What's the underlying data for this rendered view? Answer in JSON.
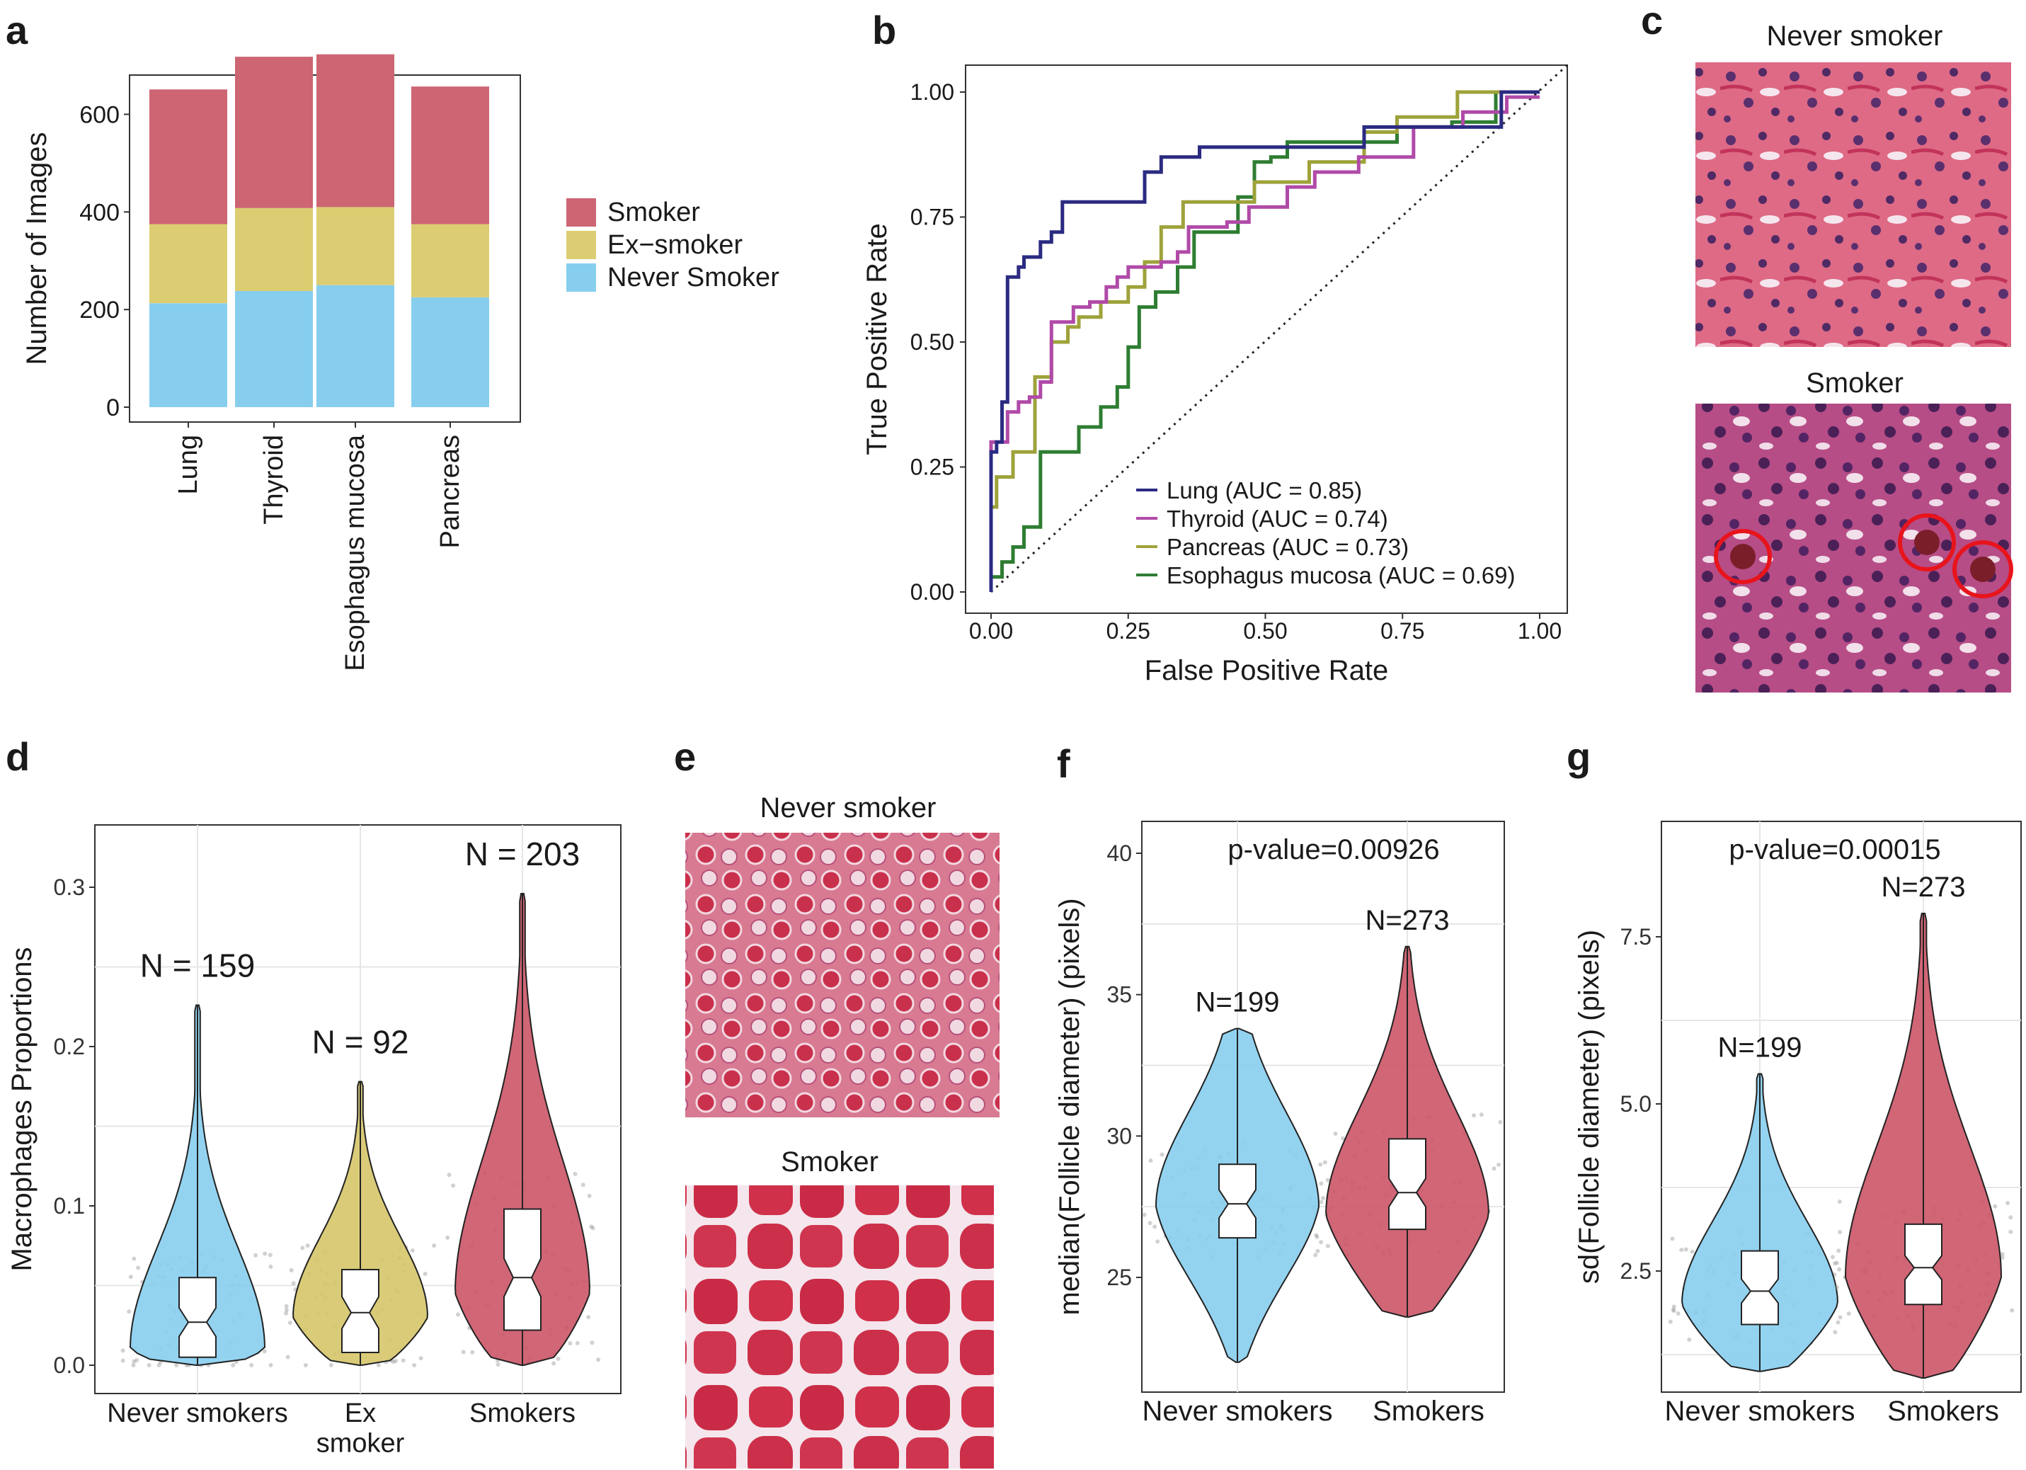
{
  "panels": {
    "a": "a",
    "b": "b",
    "c": "c",
    "d": "d",
    "e": "e",
    "f": "f",
    "g": "g"
  },
  "colors": {
    "smoker": "#cd6573",
    "ex_smoker": "#dccd72",
    "never": "#87ceee",
    "violin_never": "#87ceee",
    "violin_ex": "#d6c56a",
    "violin_smoker": "#cc5567",
    "lung": "#2b2b82",
    "thyroid": "#b04aa8",
    "pancreas": "#9ea23a",
    "esophagus": "#2e7d32"
  },
  "images": {
    "c_top_label": "Never smoker",
    "c_bottom_label": "Smoker",
    "e_top_label": "Never smoker",
    "e_bottom_label": "Smoker"
  },
  "chart_data": [
    {
      "panel": "a",
      "type": "bar",
      "stacked": true,
      "categories": [
        "Lung",
        "Thyroid",
        "Esophagus mucosa",
        "Pancreas"
      ],
      "series": [
        {
          "name": "Never Smoker",
          "values": [
            213,
            238,
            250,
            225
          ]
        },
        {
          "name": "Ex−smoker",
          "values": [
            162,
            170,
            160,
            150
          ]
        },
        {
          "name": "Smoker",
          "values": [
            276,
            310,
            313,
            282
          ]
        }
      ],
      "legend_order": [
        "Smoker",
        "Ex−smoker",
        "Never Smoker"
      ],
      "ylabel": "Number of Images",
      "xlabel": "",
      "ylim": [
        0,
        750
      ],
      "yticks": [
        "0",
        "200",
        "400",
        "600"
      ],
      "legend": "right",
      "grid": false
    },
    {
      "panel": "b",
      "type": "line",
      "xlabel": "False Positive Rate",
      "ylabel": "True Positive Rate",
      "xlim": [
        0,
        1
      ],
      "ylim": [
        0,
        1
      ],
      "xticks": [
        "0.00",
        "0.25",
        "0.50",
        "0.75",
        "1.00"
      ],
      "yticks": [
        "0.00",
        "0.25",
        "0.50",
        "0.75",
        "1.00"
      ],
      "legend": "bottom-right",
      "grid": false,
      "series": [
        {
          "name": "Lung (AUC = 0.85)",
          "points": [
            [
              0,
              0
            ],
            [
              0,
              0.28
            ],
            [
              0.01,
              0.28
            ],
            [
              0.01,
              0.3
            ],
            [
              0.02,
              0.3
            ],
            [
              0.02,
              0.38
            ],
            [
              0.03,
              0.38
            ],
            [
              0.03,
              0.63
            ],
            [
              0.05,
              0.63
            ],
            [
              0.05,
              0.65
            ],
            [
              0.06,
              0.65
            ],
            [
              0.06,
              0.67
            ],
            [
              0.09,
              0.67
            ],
            [
              0.09,
              0.7
            ],
            [
              0.11,
              0.7
            ],
            [
              0.11,
              0.72
            ],
            [
              0.13,
              0.72
            ],
            [
              0.13,
              0.78
            ],
            [
              0.28,
              0.78
            ],
            [
              0.28,
              0.84
            ],
            [
              0.31,
              0.84
            ],
            [
              0.31,
              0.87
            ],
            [
              0.38,
              0.87
            ],
            [
              0.38,
              0.89
            ],
            [
              0.68,
              0.89
            ],
            [
              0.68,
              0.93
            ],
            [
              0.93,
              0.93
            ],
            [
              0.93,
              1.0
            ],
            [
              1.0,
              1.0
            ]
          ]
        },
        {
          "name": "Thyroid (AUC = 0.74)",
          "points": [
            [
              0,
              0
            ],
            [
              0,
              0.3
            ],
            [
              0.03,
              0.3
            ],
            [
              0.03,
              0.36
            ],
            [
              0.05,
              0.36
            ],
            [
              0.05,
              0.38
            ],
            [
              0.07,
              0.38
            ],
            [
              0.07,
              0.39
            ],
            [
              0.09,
              0.39
            ],
            [
              0.09,
              0.42
            ],
            [
              0.11,
              0.42
            ],
            [
              0.11,
              0.54
            ],
            [
              0.15,
              0.54
            ],
            [
              0.15,
              0.57
            ],
            [
              0.18,
              0.57
            ],
            [
              0.18,
              0.58
            ],
            [
              0.21,
              0.58
            ],
            [
              0.21,
              0.61
            ],
            [
              0.23,
              0.61
            ],
            [
              0.23,
              0.63
            ],
            [
              0.25,
              0.63
            ],
            [
              0.25,
              0.65
            ],
            [
              0.31,
              0.65
            ],
            [
              0.31,
              0.66
            ],
            [
              0.34,
              0.66
            ],
            [
              0.34,
              0.68
            ],
            [
              0.36,
              0.68
            ],
            [
              0.36,
              0.73
            ],
            [
              0.43,
              0.73
            ],
            [
              0.43,
              0.74
            ],
            [
              0.47,
              0.74
            ],
            [
              0.47,
              0.77
            ],
            [
              0.54,
              0.77
            ],
            [
              0.54,
              0.81
            ],
            [
              0.59,
              0.81
            ],
            [
              0.59,
              0.84
            ],
            [
              0.67,
              0.84
            ],
            [
              0.67,
              0.87
            ],
            [
              0.77,
              0.87
            ],
            [
              0.77,
              0.93
            ],
            [
              0.86,
              0.93
            ],
            [
              0.86,
              0.96
            ],
            [
              0.94,
              0.96
            ],
            [
              0.94,
              0.99
            ],
            [
              1.0,
              0.99
            ]
          ]
        },
        {
          "name": "Pancreas (AUC = 0.73)",
          "points": [
            [
              0,
              0
            ],
            [
              0,
              0.17
            ],
            [
              0.01,
              0.17
            ],
            [
              0.01,
              0.23
            ],
            [
              0.04,
              0.23
            ],
            [
              0.04,
              0.28
            ],
            [
              0.08,
              0.28
            ],
            [
              0.08,
              0.43
            ],
            [
              0.11,
              0.43
            ],
            [
              0.11,
              0.5
            ],
            [
              0.14,
              0.5
            ],
            [
              0.14,
              0.53
            ],
            [
              0.16,
              0.53
            ],
            [
              0.16,
              0.55
            ],
            [
              0.2,
              0.55
            ],
            [
              0.2,
              0.58
            ],
            [
              0.25,
              0.58
            ],
            [
              0.25,
              0.61
            ],
            [
              0.28,
              0.61
            ],
            [
              0.28,
              0.66
            ],
            [
              0.31,
              0.66
            ],
            [
              0.31,
              0.73
            ],
            [
              0.35,
              0.73
            ],
            [
              0.35,
              0.78
            ],
            [
              0.48,
              0.78
            ],
            [
              0.48,
              0.82
            ],
            [
              0.58,
              0.82
            ],
            [
              0.58,
              0.86
            ],
            [
              0.68,
              0.86
            ],
            [
              0.68,
              0.92
            ],
            [
              0.74,
              0.92
            ],
            [
              0.74,
              0.95
            ],
            [
              0.85,
              0.95
            ],
            [
              0.85,
              1.0
            ],
            [
              1.0,
              1.0
            ]
          ]
        },
        {
          "name": "Esophagus mucosa (AUC = 0.69)",
          "points": [
            [
              0,
              0
            ],
            [
              0,
              0.03
            ],
            [
              0.02,
              0.03
            ],
            [
              0.02,
              0.06
            ],
            [
              0.04,
              0.06
            ],
            [
              0.04,
              0.09
            ],
            [
              0.06,
              0.09
            ],
            [
              0.06,
              0.13
            ],
            [
              0.09,
              0.13
            ],
            [
              0.09,
              0.28
            ],
            [
              0.16,
              0.28
            ],
            [
              0.16,
              0.33
            ],
            [
              0.2,
              0.33
            ],
            [
              0.2,
              0.37
            ],
            [
              0.23,
              0.37
            ],
            [
              0.23,
              0.41
            ],
            [
              0.25,
              0.41
            ],
            [
              0.25,
              0.49
            ],
            [
              0.27,
              0.49
            ],
            [
              0.27,
              0.57
            ],
            [
              0.3,
              0.57
            ],
            [
              0.3,
              0.6
            ],
            [
              0.34,
              0.6
            ],
            [
              0.34,
              0.65
            ],
            [
              0.37,
              0.65
            ],
            [
              0.37,
              0.72
            ],
            [
              0.45,
              0.72
            ],
            [
              0.45,
              0.79
            ],
            [
              0.48,
              0.79
            ],
            [
              0.48,
              0.86
            ],
            [
              0.51,
              0.86
            ],
            [
              0.51,
              0.87
            ],
            [
              0.54,
              0.87
            ],
            [
              0.54,
              0.9
            ],
            [
              0.74,
              0.9
            ],
            [
              0.74,
              0.93
            ],
            [
              0.84,
              0.93
            ],
            [
              0.84,
              0.94
            ],
            [
              0.92,
              0.94
            ],
            [
              0.92,
              1.0
            ],
            [
              1.0,
              1.0
            ]
          ]
        }
      ],
      "reference_line": [
        [
          0,
          0
        ],
        [
          1,
          1
        ]
      ]
    },
    {
      "panel": "d",
      "type": "violin",
      "categories": [
        "Never smokers",
        "Ex\nsmoker",
        "Smokers"
      ],
      "ylabel": "Macrophages Proportions",
      "ylim": [
        -0.005,
        0.33
      ],
      "yticks": [
        "0.0",
        "0.1",
        "0.2",
        "0.3"
      ],
      "grid": true,
      "groups": [
        {
          "name": "Never smokers",
          "n_label": "N = 159",
          "min": 0.0,
          "q1": 0.005,
          "median": 0.027,
          "q3": 0.055,
          "max": 0.226,
          "notch": 0.009,
          "peak": 0.01
        },
        {
          "name": "Ex smoker",
          "n_label": "N = 92",
          "min": 0.0,
          "q1": 0.008,
          "median": 0.033,
          "q3": 0.06,
          "max": 0.178,
          "notch": 0.01,
          "peak": 0.03
        },
        {
          "name": "Smokers",
          "n_label": "N = 203",
          "min": 0.0,
          "q1": 0.022,
          "median": 0.055,
          "q3": 0.098,
          "max": 0.296,
          "notch": 0.012,
          "peak": 0.045
        }
      ]
    },
    {
      "panel": "f",
      "type": "violin",
      "categories": [
        "Never smokers",
        "Smokers"
      ],
      "ylabel": "median(Follicle diameter) (pixels)",
      "ylim": [
        21,
        41
      ],
      "yticks": [
        "25",
        "30",
        "35",
        "40"
      ],
      "grid": true,
      "annotation": "p-value=0.00926",
      "groups": [
        {
          "name": "Never smokers",
          "n_label": "N=199",
          "min": 22.0,
          "q1": 26.4,
          "median": 27.6,
          "q3": 29.0,
          "max": 33.8,
          "notch": 0.5,
          "peak": 27.5
        },
        {
          "name": "Smokers",
          "n_label": "N=273",
          "min": 23.6,
          "q1": 26.7,
          "median": 28.0,
          "q3": 29.9,
          "max": 36.7,
          "notch": 0.5,
          "peak": 27.2
        }
      ]
    },
    {
      "panel": "g",
      "type": "violin",
      "categories": [
        "Never smokers",
        "Smokers"
      ],
      "ylabel": "sd(Follicle diameter) (pixels)",
      "ylim": [
        0.6,
        8.6
      ],
      "yticks": [
        "2.5",
        "5.0",
        "7.5"
      ],
      "grid": true,
      "annotation": "p-value=0.00015",
      "groups": [
        {
          "name": "Never smokers",
          "n_label": "N=199",
          "min": 1.0,
          "q1": 1.7,
          "median": 2.2,
          "q3": 2.8,
          "max": 5.45,
          "notch": 0.18,
          "peak": 2.0
        },
        {
          "name": "Smokers",
          "n_label": "N=273",
          "min": 0.9,
          "q1": 2.0,
          "median": 2.55,
          "q3": 3.2,
          "max": 7.85,
          "notch": 0.18,
          "peak": 2.4
        }
      ]
    }
  ]
}
